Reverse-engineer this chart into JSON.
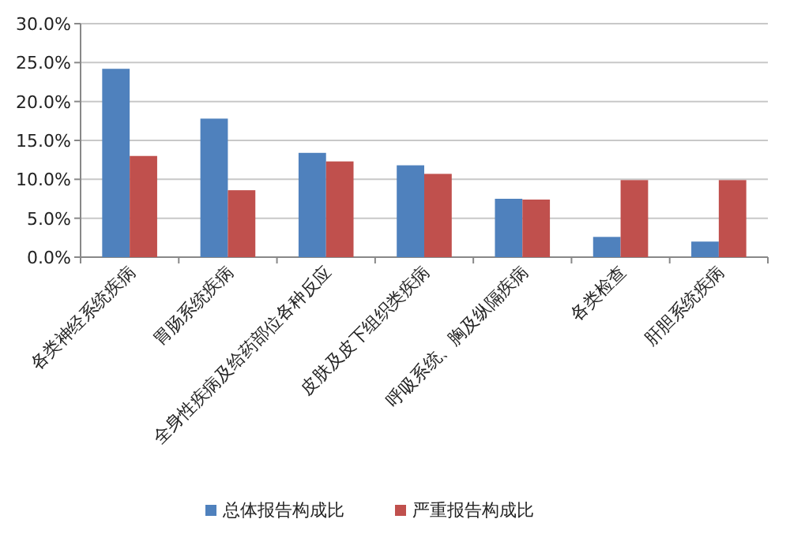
{
  "chart_data": {
    "type": "bar",
    "categories": [
      "各类神经系统疾病",
      "胃肠系统疾病",
      "全身性疾病及给药部位各种反应",
      "皮肤及皮下组织类疾病",
      "呼吸系统、胸及纵隔疾病",
      "各类检查",
      "肝胆系统疾病"
    ],
    "series": [
      {
        "name": "总体报告构成比",
        "color": "#4f81bd",
        "values": [
          24.2,
          17.8,
          13.4,
          11.8,
          7.5,
          2.6,
          2.0
        ]
      },
      {
        "name": "严重报告构成比",
        "color": "#c0504d",
        "values": [
          13.0,
          8.6,
          12.3,
          10.7,
          7.4,
          9.9,
          9.9
        ]
      }
    ],
    "ylim": [
      0,
      30
    ],
    "yticks": [
      {
        "value": 0,
        "label": "0.0%"
      },
      {
        "value": 5,
        "label": "5.0%"
      },
      {
        "value": 10,
        "label": "10.0%"
      },
      {
        "value": 15,
        "label": "15.0%"
      },
      {
        "value": 20,
        "label": "20.0%"
      },
      {
        "value": 25,
        "label": "25.0%"
      },
      {
        "value": 30,
        "label": "30.0%"
      }
    ],
    "grid": "y",
    "legend": "bottom"
  }
}
